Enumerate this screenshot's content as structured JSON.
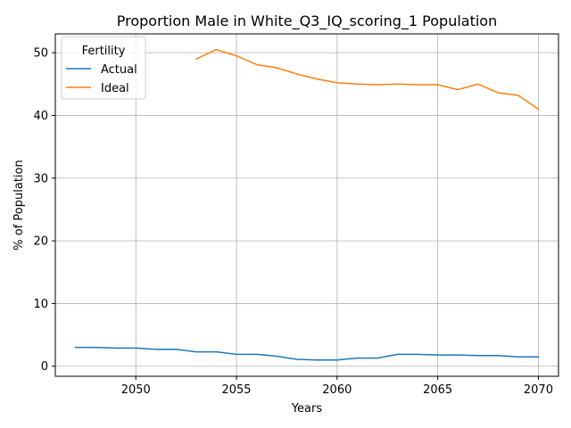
{
  "chart_data": {
    "type": "line",
    "title": "Proportion Male in White_Q3_IQ_scoring_1 Population",
    "xlabel": "Years",
    "ylabel": "% of Population",
    "xlim": [
      2046,
      2071
    ],
    "ylim": [
      -1.6,
      53
    ],
    "xticks": [
      2050,
      2055,
      2060,
      2065,
      2070
    ],
    "yticks": [
      0,
      10,
      20,
      30,
      40,
      50
    ],
    "grid": true,
    "legend": {
      "title": "Fertility",
      "placement": "top-left"
    },
    "series": [
      {
        "name": "Actual",
        "color": "#1f77b4",
        "x": [
          2047,
          2048,
          2049,
          2050,
          2051,
          2052,
          2053,
          2054,
          2055,
          2056,
          2057,
          2058,
          2059,
          2060,
          2061,
          2062,
          2063,
          2064,
          2065,
          2066,
          2067,
          2068,
          2069,
          2070
        ],
        "y": [
          3.0,
          3.0,
          2.9,
          2.9,
          2.7,
          2.7,
          2.3,
          2.3,
          1.9,
          1.9,
          1.6,
          1.1,
          1.0,
          1.0,
          1.3,
          1.3,
          1.9,
          1.9,
          1.8,
          1.8,
          1.7,
          1.7,
          1.5,
          1.5
        ]
      },
      {
        "name": "Ideal",
        "color": "#ff7f0e",
        "x": [
          2053,
          2054,
          2055,
          2056,
          2057,
          2058,
          2059,
          2060,
          2061,
          2062,
          2063,
          2064,
          2065,
          2066,
          2067,
          2068,
          2069,
          2070
        ],
        "y": [
          49.0,
          50.5,
          49.5,
          48.1,
          47.6,
          46.6,
          45.8,
          45.2,
          45.0,
          44.9,
          45.0,
          44.9,
          44.9,
          44.1,
          45.0,
          43.6,
          43.2,
          41.0
        ]
      }
    ]
  }
}
